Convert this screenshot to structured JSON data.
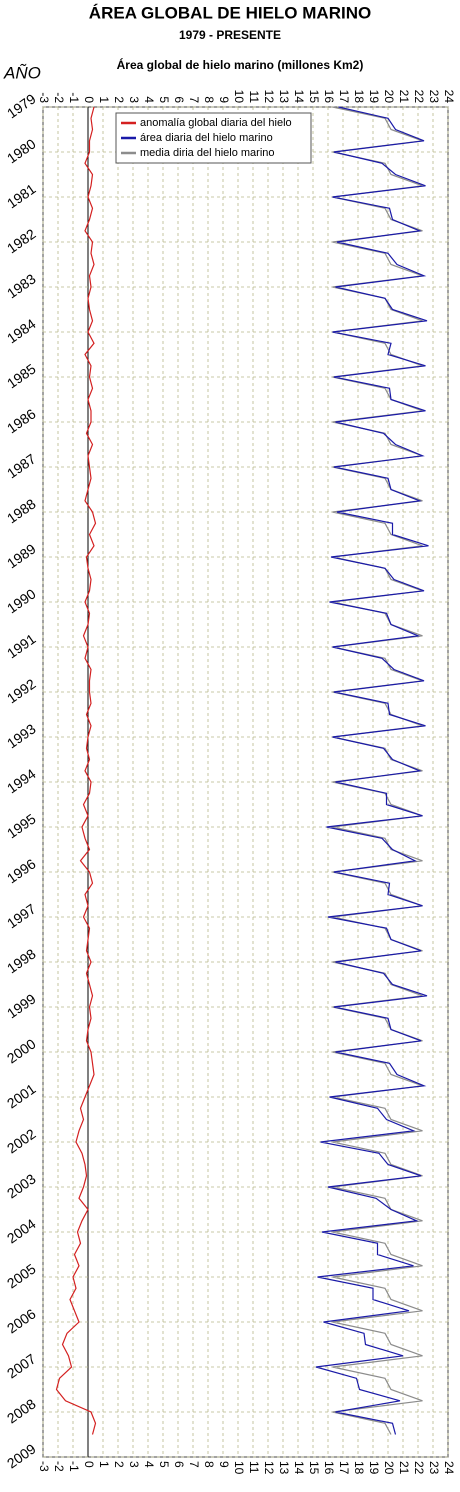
{
  "chart_data": {
    "type": "line",
    "title": "ÁREA GLOBAL DE HIELO MARINO",
    "subtitle": "1979 - PRESENTE",
    "x_label": "Área global de hielo marino (millones Km2)",
    "y_label": "AÑO",
    "x": [
      1979,
      1979.25,
      1979.5,
      1979.75,
      1980,
      1980.25,
      1980.5,
      1980.75,
      1981,
      1981.25,
      1981.5,
      1981.75,
      1982,
      1982.25,
      1982.5,
      1982.75,
      1983,
      1983.25,
      1983.5,
      1983.75,
      1984,
      1984.25,
      1984.5,
      1984.75,
      1985,
      1985.25,
      1985.5,
      1985.75,
      1986,
      1986.25,
      1986.5,
      1986.75,
      1987,
      1987.25,
      1987.5,
      1987.75,
      1988,
      1988.25,
      1988.5,
      1988.75,
      1989,
      1989.25,
      1989.5,
      1989.75,
      1990,
      1990.25,
      1990.5,
      1990.75,
      1991,
      1991.25,
      1991.5,
      1991.75,
      1992,
      1992.25,
      1992.5,
      1992.75,
      1993,
      1993.25,
      1993.5,
      1993.75,
      1994,
      1994.25,
      1994.5,
      1994.75,
      1995,
      1995.25,
      1995.5,
      1995.75,
      1996,
      1996.25,
      1996.5,
      1996.75,
      1997,
      1997.25,
      1997.5,
      1997.75,
      1998,
      1998.25,
      1998.5,
      1998.75,
      1999,
      1999.25,
      1999.5,
      1999.75,
      2000,
      2000.25,
      2000.5,
      2000.75,
      2001,
      2001.25,
      2001.5,
      2001.75,
      2002,
      2002.25,
      2002.5,
      2002.75,
      2003,
      2003.25,
      2003.5,
      2003.75,
      2004,
      2004.25,
      2004.5,
      2004.75,
      2005,
      2005.25,
      2005.5,
      2005.75,
      2006,
      2006.25,
      2006.5,
      2006.75,
      2007,
      2007.25,
      2007.5,
      2007.75,
      2008,
      2008.25,
      2008.5
    ],
    "series": [
      {
        "name": "anomalía global diaria del hielo",
        "color": "#d42020",
        "values": [
          0.4,
          0.2,
          0.3,
          0.1,
          0.1,
          -0.2,
          0.3,
          0.2,
          0.0,
          0.3,
          0.1,
          -0.2,
          0.3,
          0.2,
          0.4,
          0.1,
          0.2,
          0.0,
          0.1,
          0.3,
          0.0,
          0.4,
          -0.2,
          0.2,
          0.1,
          0.3,
          0.0,
          0.2,
          0.2,
          -0.1,
          0.3,
          0.0,
          0.1,
          0.2,
          0.0,
          -0.2,
          0.3,
          0.5,
          0.1,
          0.4,
          -0.1,
          0.0,
          0.2,
          0.1,
          -0.2,
          0.1,
          0.0,
          -0.3,
          0.0,
          -0.2,
          0.2,
          0.1,
          0.1,
          0.2,
          -0.1,
          0.2,
          0.0,
          -0.1,
          0.1,
          -0.2,
          0.2,
          0.1,
          -0.3,
          0.0,
          -0.4,
          -0.2,
          0.1,
          -0.5,
          0.1,
          0.3,
          -0.2,
          0.0,
          -0.3,
          0.1,
          0.0,
          -0.1,
          0.2,
          -0.1,
          0.1,
          0.3,
          0.1,
          0.2,
          0.0,
          -0.1,
          0.2,
          0.3,
          0.4,
          0.1,
          -0.2,
          -0.5,
          -0.3,
          -0.6,
          -0.8,
          -0.4,
          -0.2,
          -0.1,
          -0.3,
          -0.6,
          0.0,
          -0.4,
          -0.7,
          -0.5,
          -0.9,
          -0.6,
          -1.0,
          -0.8,
          -1.2,
          -0.9,
          -0.6,
          -1.4,
          -1.7,
          -1.3,
          -1.1,
          -1.9,
          -2.1,
          -1.5,
          0.2,
          0.5,
          0.3
        ]
      },
      {
        "name": "área diaria del hielo marino",
        "color": "#1a1aa8",
        "values": [
          16.7,
          20.0,
          20.5,
          22.4,
          16.4,
          19.6,
          20.5,
          22.5,
          16.3,
          20.1,
          20.3,
          22.1,
          16.6,
          20.0,
          20.6,
          22.4,
          16.5,
          19.8,
          20.3,
          22.6,
          16.3,
          20.2,
          20.0,
          22.5,
          16.4,
          20.1,
          20.2,
          22.5,
          16.5,
          19.7,
          20.5,
          22.3,
          16.4,
          20.0,
          20.2,
          22.1,
          16.6,
          20.3,
          20.3,
          22.7,
          16.2,
          19.8,
          20.4,
          22.4,
          16.1,
          19.9,
          20.2,
          22.0,
          16.3,
          19.6,
          20.4,
          22.4,
          16.4,
          20.0,
          20.1,
          22.5,
          16.3,
          19.7,
          20.3,
          22.1,
          16.5,
          19.9,
          19.9,
          22.3,
          15.9,
          19.6,
          20.3,
          21.8,
          16.4,
          20.1,
          20.0,
          22.3,
          16.0,
          19.9,
          20.2,
          22.2,
          16.5,
          19.7,
          20.3,
          22.6,
          16.4,
          20.0,
          20.2,
          22.2,
          16.5,
          20.1,
          20.6,
          22.4,
          16.1,
          19.3,
          19.9,
          21.7,
          15.5,
          19.4,
          20.0,
          22.2,
          16.0,
          19.2,
          20.2,
          21.9,
          15.6,
          19.3,
          19.3,
          21.7,
          15.3,
          19.0,
          19.0,
          21.4,
          15.7,
          18.4,
          18.5,
          21.0,
          15.2,
          17.9,
          18.1,
          20.8,
          16.5,
          20.3,
          20.5
        ]
      },
      {
        "name": "media diria del hielo marino",
        "color": "#8c8c8c",
        "values": [
          16.3,
          19.8,
          20.2,
          22.3,
          16.3,
          19.8,
          20.2,
          22.3,
          16.3,
          19.8,
          20.2,
          22.3,
          16.3,
          19.8,
          20.2,
          22.3,
          16.3,
          19.8,
          20.2,
          22.3,
          16.3,
          19.8,
          20.2,
          22.3,
          16.3,
          19.8,
          20.2,
          22.3,
          16.3,
          19.8,
          20.2,
          22.3,
          16.3,
          19.8,
          20.2,
          22.3,
          16.3,
          19.8,
          20.2,
          22.3,
          16.3,
          19.8,
          20.2,
          22.3,
          16.3,
          19.8,
          20.2,
          22.3,
          16.3,
          19.8,
          20.2,
          22.3,
          16.3,
          19.8,
          20.2,
          22.3,
          16.3,
          19.8,
          20.2,
          22.3,
          16.3,
          19.8,
          20.2,
          22.3,
          16.3,
          19.8,
          20.2,
          22.3,
          16.3,
          19.8,
          20.2,
          22.3,
          16.3,
          19.8,
          20.2,
          22.3,
          16.3,
          19.8,
          20.2,
          22.3,
          16.3,
          19.8,
          20.2,
          22.3,
          16.3,
          19.8,
          20.2,
          22.3,
          16.3,
          19.8,
          20.2,
          22.3,
          16.3,
          19.8,
          20.2,
          22.3,
          16.3,
          19.8,
          20.2,
          22.3,
          16.3,
          19.8,
          20.2,
          22.3,
          16.3,
          19.8,
          20.2,
          22.3,
          16.3,
          19.8,
          20.2,
          22.3,
          16.3,
          19.8,
          20.2,
          22.3,
          16.3,
          19.8,
          20.2
        ]
      }
    ],
    "xlim": [
      -3,
      24
    ],
    "xticks": [
      -3,
      -2,
      -1,
      0,
      1,
      2,
      3,
      4,
      5,
      6,
      7,
      8,
      9,
      10,
      11,
      12,
      13,
      14,
      15,
      16,
      17,
      18,
      19,
      20,
      21,
      22,
      23,
      24
    ],
    "ylim": [
      1979,
      2009
    ],
    "yticks": [
      1979,
      1980,
      1981,
      1982,
      1983,
      1984,
      1985,
      1986,
      1987,
      1988,
      1989,
      1990,
      1991,
      1992,
      1993,
      1994,
      1995,
      1996,
      1997,
      1998,
      1999,
      2000,
      2001,
      2002,
      2003,
      2004,
      2005,
      2006,
      2007,
      2008,
      2009
    ],
    "grid": true,
    "legend": "top-left"
  }
}
